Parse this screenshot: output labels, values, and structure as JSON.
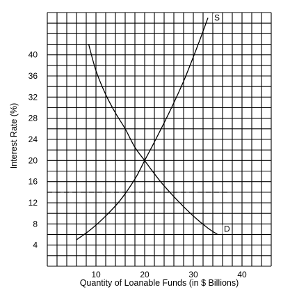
{
  "chart_data": {
    "type": "line",
    "xlabel": "Quantity of Loanable Funds (in $ Billions)",
    "ylabel": "Interest Rate (%)",
    "xlim": [
      0,
      46
    ],
    "ylim": [
      0,
      48
    ],
    "grid": true,
    "x_grid_step": 2,
    "y_grid_step": 2,
    "x_ticks": [
      10,
      20,
      30,
      40
    ],
    "y_ticks": [
      4,
      8,
      12,
      16,
      20,
      24,
      28,
      32,
      36,
      40
    ],
    "series": [
      {
        "name": "S",
        "x": [
          6,
          9,
          12,
          15,
          18,
          20,
          22,
          25,
          28,
          31,
          33
        ],
        "y": [
          5,
          7,
          9.5,
          12.5,
          16.5,
          20,
          23.5,
          29,
          35,
          42,
          47
        ]
      },
      {
        "name": "D",
        "x": [
          8.5,
          10,
          12,
          14,
          16,
          18,
          20,
          22,
          24,
          27,
          30,
          33,
          35
        ],
        "y": [
          42,
          37,
          32.5,
          29,
          26,
          22.5,
          20,
          17.5,
          15.2,
          12.2,
          9.5,
          7.2,
          6
        ]
      }
    ],
    "reference_lines": [
      {
        "orientation": "horizontal",
        "y": 14,
        "style": "dashed"
      }
    ]
  }
}
